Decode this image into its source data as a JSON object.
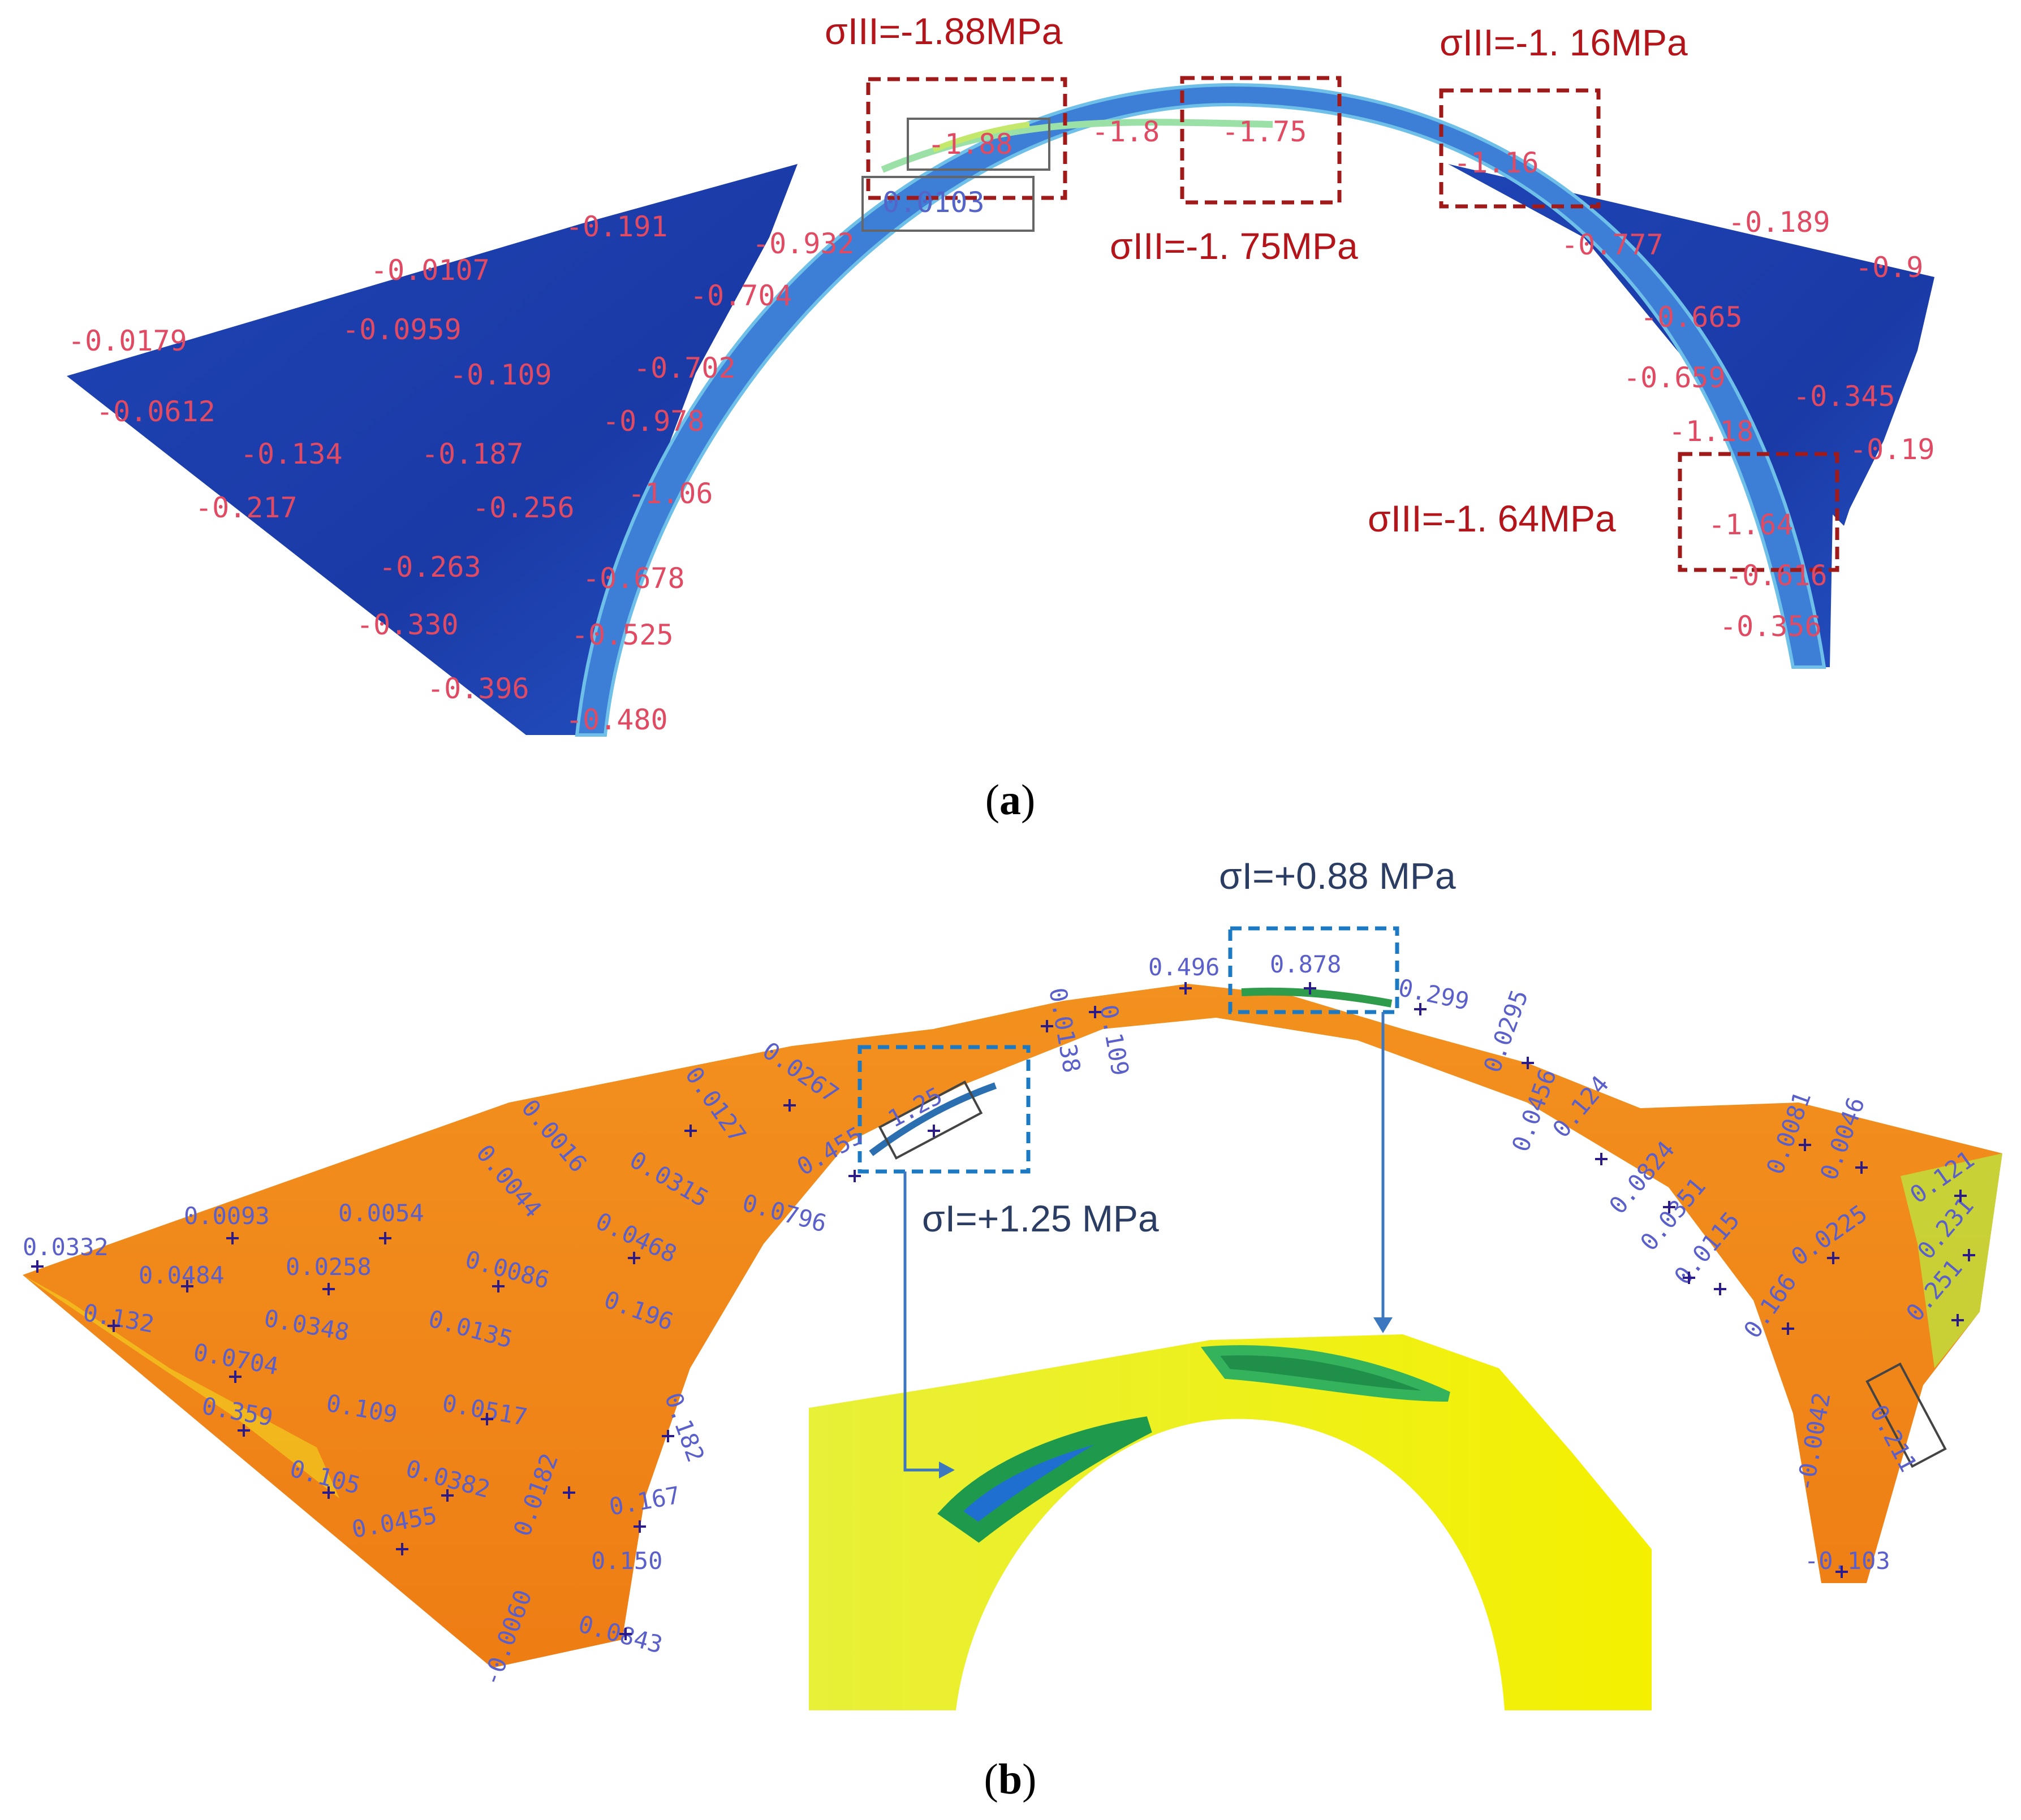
{
  "panel_a": {
    "caption_open": "(",
    "caption_letter": "a",
    "caption_close": ")",
    "callouts": [
      {
        "text": "σIII=-1.88MPa"
      },
      {
        "text": "σIII=-1. 16MPa"
      },
      {
        "text": "σIII=-1. 75MPa"
      },
      {
        "text": "σIII=-1. 64MPa"
      }
    ],
    "contour_labels": [
      "-1.88",
      "0.0103",
      "-1.8",
      "-1.75",
      "-1.16",
      "-0.191",
      "-0.0107",
      "-0.0959",
      "-0.0179",
      "-0.0612",
      "-0.134",
      "-0.187",
      "-0.217",
      "-0.109",
      "-0.256",
      "-0.263",
      "-0.330",
      "-0.396",
      "-0.932",
      "-0.704",
      "-0.702",
      "-0.978",
      "-1.06",
      "-0.678",
      "-0.525",
      "-0.480",
      "-0.189",
      "-0.9",
      "-0.777",
      "-0.665",
      "-0.659",
      "-0.345",
      "-1.18",
      "-0.19",
      "-1.64",
      "-0.616",
      "-0.356"
    ]
  },
  "panel_b": {
    "caption_open": "(",
    "caption_letter": "b",
    "caption_close": ")",
    "callouts": [
      {
        "text": "σI=+0.88 MPa"
      },
      {
        "text": "σI=+1.25 MPa"
      }
    ],
    "contour_labels": [
      "0.496",
      "0.878",
      "0.299",
      "0.0295",
      "0.0456",
      "0.124",
      "0.0824",
      "0.0351",
      "0.0115",
      "0.0081",
      "0.0046",
      "0.0225",
      "0.121",
      "0.231",
      "0.251",
      "0.166",
      "-0.0042",
      "0.211",
      "-0.103",
      "0.109",
      "0.0138",
      "1.25",
      "0.0267",
      "0.455",
      "0.0796",
      "0.0127",
      "0.0315",
      "0.0468",
      "0.196",
      "0.0016",
      "0.0044",
      "0.0093",
      "0.0054",
      "0.0484",
      "0.0258",
      "0.0086",
      "0.0332",
      "0.132",
      "0.0348",
      "0.0135",
      "0.0704",
      "0.359",
      "0.109",
      "0.0517",
      "0.182",
      "0.105",
      "0.0382",
      "0.0182",
      "0.167",
      "0.0455",
      "0.150",
      "0.0843",
      "-0.0060"
    ]
  }
}
